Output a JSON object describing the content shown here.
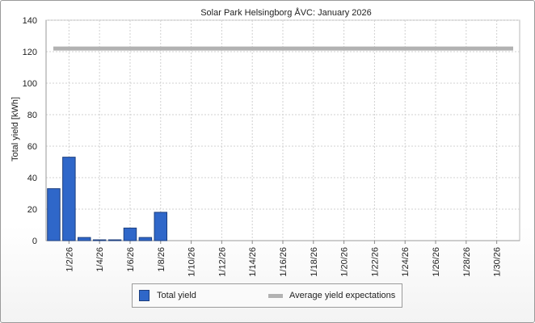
{
  "chart_data": {
    "type": "bar",
    "title": "Solar Park Helsingborg ÅVC: January 2026",
    "ylabel": "Total yield [kWh]",
    "xlabel": "",
    "ylim": [
      0,
      140
    ],
    "yticks": [
      0,
      20,
      40,
      60,
      80,
      100,
      120,
      140
    ],
    "categories": [
      "1/1/26",
      "1/2/26",
      "1/3/26",
      "1/4/26",
      "1/5/26",
      "1/6/26",
      "1/7/26",
      "1/8/26",
      "1/9/26",
      "1/10/26",
      "1/11/26",
      "1/12/26",
      "1/13/26",
      "1/14/26",
      "1/15/26",
      "1/16/26",
      "1/17/26",
      "1/18/26",
      "1/19/26",
      "1/20/26",
      "1/21/26",
      "1/22/26",
      "1/23/26",
      "1/24/26",
      "1/25/26",
      "1/26/26",
      "1/27/26",
      "1/28/26",
      "1/29/26",
      "1/30/26",
      "1/31/26"
    ],
    "xtick_labels": [
      "1/2/26",
      "1/4/26",
      "1/6/26",
      "1/8/26",
      "1/10/26",
      "1/12/26",
      "1/14/26",
      "1/16/26",
      "1/18/26",
      "1/20/26",
      "1/22/26",
      "1/24/26",
      "1/26/26",
      "1/28/26",
      "1/30/26"
    ],
    "series": [
      {
        "name": "Total yield",
        "type": "bar",
        "color": "#2f67c9",
        "values": [
          33,
          53,
          2,
          0.5,
          0.5,
          8,
          2,
          18,
          null,
          null,
          null,
          null,
          null,
          null,
          null,
          null,
          null,
          null,
          null,
          null,
          null,
          null,
          null,
          null,
          null,
          null,
          null,
          null,
          null,
          null,
          null
        ]
      },
      {
        "name": "Average yield expectations",
        "type": "line",
        "color": "#b2b2b2",
        "value": 122
      }
    ],
    "grid": true,
    "legend_position": "bottom"
  }
}
